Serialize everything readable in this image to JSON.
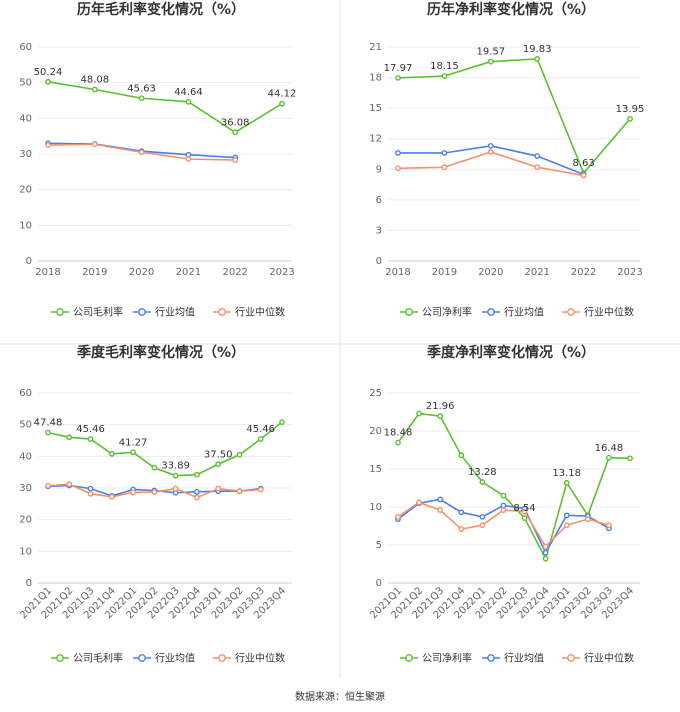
{
  "source": "数据来源：恒生聚源",
  "legend_labels": {
    "gross": [
      "公司毛利率",
      "行业均值",
      "行业中位数"
    ],
    "net": [
      "公司净利率",
      "行业均值",
      "行业中位数"
    ]
  },
  "colors": {
    "company": "#5ac12f",
    "avg": "#4a7ee8",
    "median": "#f4906c",
    "divider": "#e6e6e6"
  },
  "chart_data": [
    {
      "type": "line",
      "title": "历年毛利率变化情况（%）",
      "x": [
        "2018",
        "2019",
        "2020",
        "2021",
        "2022",
        "2023"
      ],
      "ylim": [
        0,
        60
      ],
      "yticks": [
        0,
        10,
        20,
        30,
        40,
        50,
        60
      ],
      "series": [
        {
          "name": "公司毛利率",
          "values": [
            50.24,
            48.08,
            45.63,
            44.64,
            36.08,
            44.12
          ]
        },
        {
          "name": "行业均值",
          "values": [
            33.0,
            32.8,
            30.8,
            29.8,
            29.0,
            null
          ]
        },
        {
          "name": "行业中位数",
          "values": [
            32.5,
            32.7,
            30.5,
            28.6,
            28.3,
            null
          ]
        }
      ],
      "data_labels": [
        {
          "i": 0,
          "text": "50.24"
        },
        {
          "i": 1,
          "text": "48.08"
        },
        {
          "i": 2,
          "text": "45.63"
        },
        {
          "i": 3,
          "text": "44.64"
        },
        {
          "i": 4,
          "text": "36.08"
        },
        {
          "i": 5,
          "text": "44.12"
        }
      ]
    },
    {
      "type": "line",
      "title": "历年净利率变化情况（%）",
      "x": [
        "2018",
        "2019",
        "2020",
        "2021",
        "2022",
        "2023"
      ],
      "ylim": [
        0,
        21
      ],
      "yticks": [
        0,
        3,
        6,
        9,
        12,
        15,
        18,
        21
      ],
      "series": [
        {
          "name": "公司净利率",
          "values": [
            17.97,
            18.15,
            19.57,
            19.83,
            8.63,
            13.95
          ]
        },
        {
          "name": "行业均值",
          "values": [
            10.6,
            10.6,
            11.3,
            10.3,
            8.5,
            null
          ]
        },
        {
          "name": "行业中位数",
          "values": [
            9.1,
            9.2,
            10.7,
            9.2,
            8.4,
            null
          ]
        }
      ],
      "data_labels": [
        {
          "i": 0,
          "text": "17.97"
        },
        {
          "i": 1,
          "text": "18.15"
        },
        {
          "i": 2,
          "text": "19.57"
        },
        {
          "i": 3,
          "text": "19.83"
        },
        {
          "i": 4,
          "text": "8.63"
        },
        {
          "i": 5,
          "text": "13.95"
        }
      ]
    },
    {
      "type": "line",
      "title": "季度毛利率变化情况（%）",
      "x": [
        "2021Q1",
        "2021Q2",
        "2021Q3",
        "2021Q4",
        "2022Q1",
        "2022Q2",
        "2022Q3",
        "2022Q4",
        "2023Q1",
        "2023Q2",
        "2023Q3",
        "2023Q4"
      ],
      "ylim": [
        0,
        60
      ],
      "yticks": [
        0,
        10,
        20,
        30,
        40,
        50,
        60
      ],
      "series": [
        {
          "name": "公司毛利率",
          "values": [
            47.48,
            46.0,
            45.46,
            40.8,
            41.27,
            36.4,
            33.89,
            34.2,
            37.5,
            40.5,
            45.46,
            50.8
          ]
        },
        {
          "name": "行业均值",
          "values": [
            30.5,
            30.8,
            29.8,
            27.5,
            29.5,
            29.2,
            28.5,
            28.8,
            29.0,
            29.0,
            29.8,
            null
          ]
        },
        {
          "name": "行业中位数",
          "values": [
            30.7,
            31.2,
            28.2,
            27.2,
            28.6,
            28.7,
            29.8,
            27.0,
            29.8,
            29.0,
            29.5,
            null
          ]
        }
      ],
      "data_labels": [
        {
          "i": 0,
          "text": "47.48"
        },
        {
          "i": 2,
          "text": "45.46"
        },
        {
          "i": 4,
          "text": "41.27"
        },
        {
          "i": 6,
          "text": "33.89"
        },
        {
          "i": 8,
          "text": "37.50"
        },
        {
          "i": 10,
          "text": "45.46"
        }
      ]
    },
    {
      "type": "line",
      "title": "季度净利率变化情况（%）",
      "x": [
        "2021Q1",
        "2021Q2",
        "2021Q3",
        "2021Q4",
        "2022Q1",
        "2022Q2",
        "2022Q3",
        "2022Q4",
        "2023Q1",
        "2023Q2",
        "2023Q3",
        "2023Q4"
      ],
      "ylim": [
        0,
        25
      ],
      "yticks": [
        0,
        5,
        10,
        15,
        20,
        25
      ],
      "series": [
        {
          "name": "公司净利率",
          "values": [
            18.48,
            22.3,
            21.96,
            16.8,
            13.28,
            11.5,
            8.54,
            3.2,
            13.18,
            8.9,
            16.48,
            16.4
          ]
        },
        {
          "name": "行业均值",
          "values": [
            8.4,
            10.5,
            11.0,
            9.3,
            8.7,
            10.2,
            9.8,
            4.0,
            8.9,
            8.8,
            7.2,
            null
          ]
        },
        {
          "name": "行业中位数",
          "values": [
            8.7,
            10.6,
            9.6,
            7.1,
            7.6,
            9.6,
            9.4,
            4.8,
            7.6,
            8.4,
            7.6,
            null
          ]
        }
      ],
      "data_labels": [
        {
          "i": 0,
          "text": "18.48"
        },
        {
          "i": 2,
          "text": "21.96"
        },
        {
          "i": 4,
          "text": "13.28"
        },
        {
          "i": 6,
          "text": "8.54"
        },
        {
          "i": 8,
          "text": "13.18"
        },
        {
          "i": 10,
          "text": "16.48"
        }
      ]
    }
  ]
}
